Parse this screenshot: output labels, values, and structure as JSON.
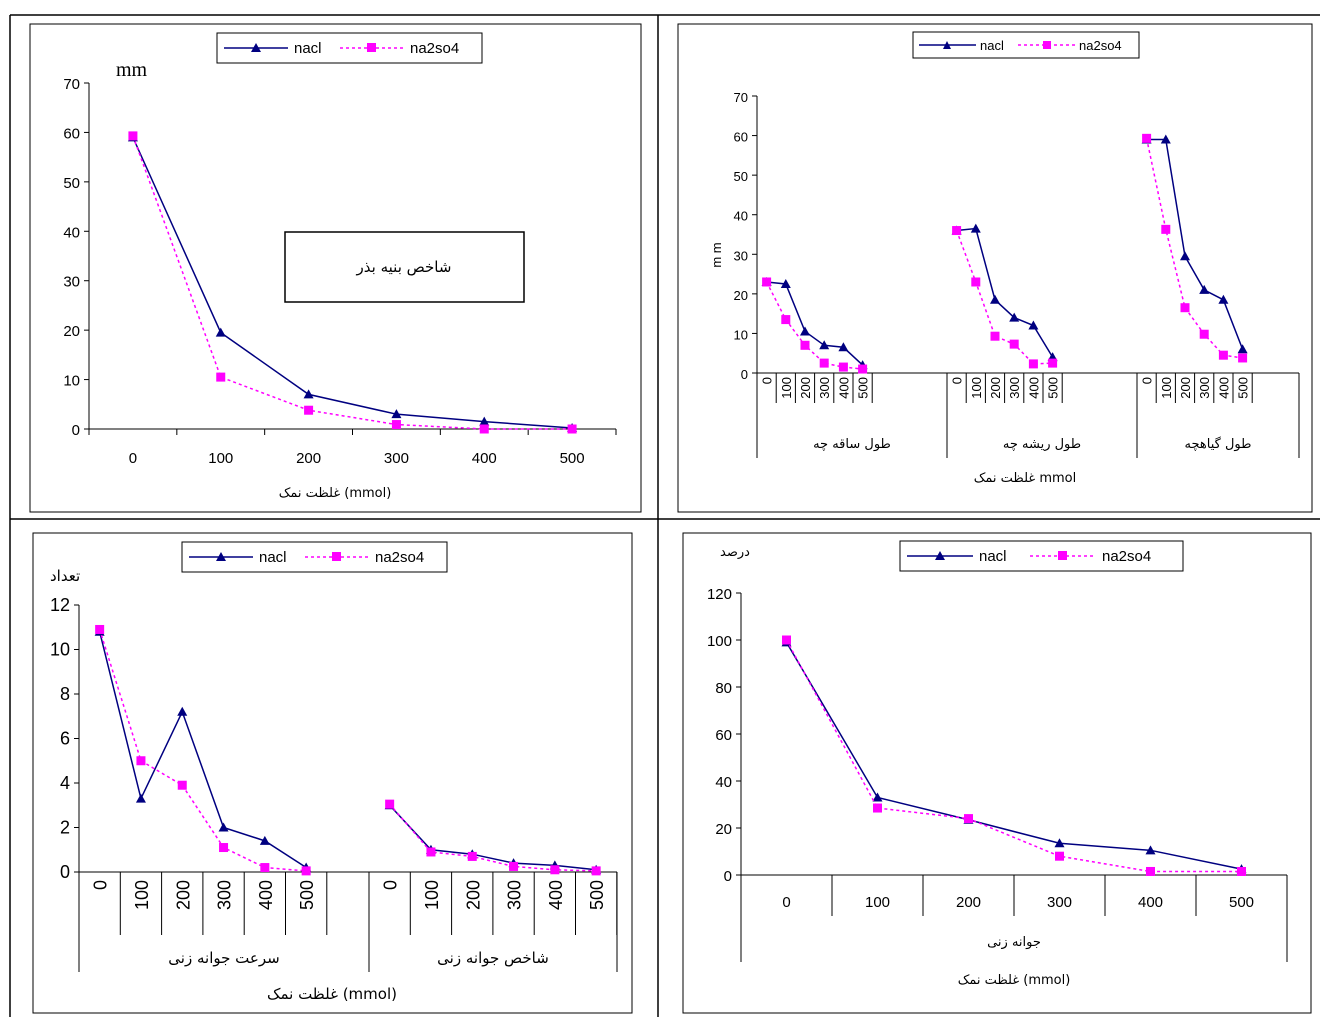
{
  "colors": {
    "nacl": "#000080",
    "na2so4": "#ff00ff"
  },
  "legend": {
    "nacl": "nacl",
    "na2so4": "na2so4"
  },
  "chart_data": [
    {
      "type": "line",
      "categories": [
        "0",
        "100",
        "200",
        "300",
        "400",
        "500"
      ],
      "series": [
        {
          "name": "nacl",
          "values": [
            59,
            19.5,
            7,
            3,
            1.5,
            0.2
          ]
        },
        {
          "name": "na2so4",
          "values": [
            59.3,
            10.5,
            3.8,
            0.9,
            0,
            0
          ]
        }
      ],
      "unit_label": "mm",
      "annotation": "شاخص بنیه بذر",
      "xlabel": "غلظت نمک (mmol)",
      "ylim": [
        0,
        70
      ],
      "yticks": [
        "0",
        "10",
        "20",
        "30",
        "40",
        "50",
        "60",
        "70"
      ],
      "legend_position": "top"
    },
    {
      "type": "line",
      "groups": [
        "طول ساقه چه",
        "طول ریشه  چه",
        "طول گیاهچه"
      ],
      "categories": [
        "0",
        "100",
        "200",
        "300",
        "400",
        "500"
      ],
      "series": [
        {
          "name": "nacl",
          "values": [
            [
              23,
              22.5,
              10.5,
              7,
              6.5,
              2
            ],
            [
              36,
              36.5,
              18.5,
              14,
              12,
              4
            ],
            [
              59,
              59,
              29.5,
              21,
              18.5,
              6
            ]
          ]
        },
        {
          "name": "na2so4",
          "values": [
            [
              23,
              13.5,
              7,
              2.5,
              1.5,
              1
            ],
            [
              36,
              23,
              9.3,
              7.3,
              2.3,
              2.5
            ],
            [
              59.3,
              36.3,
              16.5,
              9.8,
              4.5,
              3.8
            ]
          ]
        }
      ],
      "ylabel": "m m",
      "xlabel": "غلظت نمک mmol",
      "ylim": [
        0,
        70
      ],
      "yticks": [
        "0",
        "10",
        "20",
        "30",
        "40",
        "50",
        "60",
        "70"
      ],
      "legend_position": "top"
    },
    {
      "type": "line",
      "groups": [
        "سرعت جوانه زنی",
        "شاخص جوانه زنی"
      ],
      "categories": [
        "0",
        "100",
        "200",
        "300",
        "400",
        "500"
      ],
      "series": [
        {
          "name": "nacl",
          "values": [
            [
              10.8,
              3.3,
              7.2,
              2,
              1.4,
              0.2
            ],
            [
              3,
              1,
              0.8,
              0.4,
              0.3,
              0.1
            ]
          ]
        },
        {
          "name": "na2so4",
          "values": [
            [
              10.9,
              5,
              3.9,
              1.1,
              0.2,
              0.05
            ],
            [
              3.05,
              0.9,
              0.7,
              0.25,
              0.1,
              0.05
            ]
          ]
        }
      ],
      "unit_label": "تعداد",
      "xlabel": "غلظت نمک (mmol)",
      "ylim": [
        0,
        12
      ],
      "yticks": [
        "0",
        "2",
        "4",
        "6",
        "8",
        "10",
        "12"
      ],
      "legend_position": "top"
    },
    {
      "type": "line",
      "categories": [
        "0",
        "100",
        "200",
        "300",
        "400",
        "500"
      ],
      "series": [
        {
          "name": "nacl",
          "values": [
            99,
            33,
            23.5,
            13.5,
            10.5,
            2.5
          ]
        },
        {
          "name": "na2so4",
          "values": [
            100,
            28.5,
            24,
            8,
            1.5,
            1.5
          ]
        }
      ],
      "unit_label": "درصد",
      "group_label": "جوانه زنی",
      "xlabel": "غلظت نمک (mmol)",
      "ylim": [
        0,
        120
      ],
      "yticks": [
        "0",
        "20",
        "40",
        "60",
        "80",
        "100",
        "120"
      ],
      "legend_position": "top"
    }
  ]
}
